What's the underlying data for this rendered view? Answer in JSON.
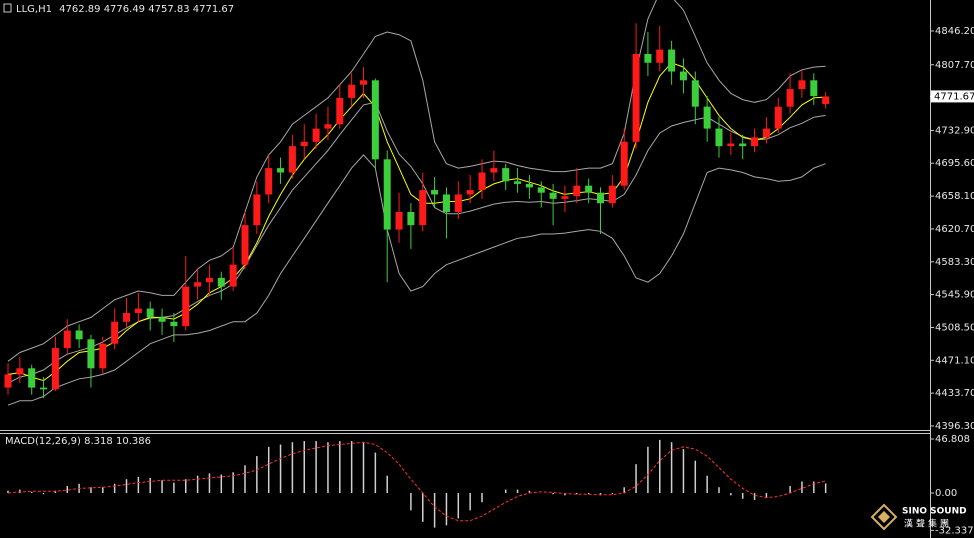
{
  "chart_data": [
    {
      "type": "candlestick",
      "title": "LLG,H1",
      "last_ohlc": [
        4762.89,
        4776.49,
        4757.83,
        4771.67
      ],
      "current_price": 4771.67,
      "ylim": [
        4391.7,
        4879.2
      ],
      "yticks": [
        {
          "value": 4846.2,
          "label": "4846.20"
        },
        {
          "value": 4807.7,
          "label": "4807.70"
        },
        {
          "value": 4732.9,
          "label": "4732.90"
        },
        {
          "value": 4695.6,
          "label": "4695.60"
        },
        {
          "value": 4658.1,
          "label": "4658.10"
        },
        {
          "value": 4620.7,
          "label": "4620.70"
        },
        {
          "value": 4583.3,
          "label": "4583.30"
        },
        {
          "value": 4545.9,
          "label": "4545.90"
        },
        {
          "value": 4508.5,
          "label": "4508.50"
        },
        {
          "value": 4471.1,
          "label": "4471.10"
        },
        {
          "value": 4433.7,
          "label": "4433.70"
        },
        {
          "value": 4396.3,
          "label": "4396.30"
        }
      ],
      "up_color": "#ff1a1a",
      "down_color": "#3ccf3c",
      "candles": [
        [
          4440,
          4468,
          4432,
          4455
        ],
        [
          4455,
          4475,
          4445,
          4462
        ],
        [
          4462,
          4466,
          4432,
          4440
        ],
        [
          4440,
          4452,
          4428,
          4438
        ],
        [
          4438,
          4498,
          4436,
          4485
        ],
        [
          4485,
          4518,
          4478,
          4505
        ],
        [
          4505,
          4512,
          4485,
          4495
        ],
        [
          4495,
          4500,
          4440,
          4462
        ],
        [
          4462,
          4498,
          4455,
          4490
        ],
        [
          4490,
          4530,
          4484,
          4515
        ],
        [
          4515,
          4542,
          4508,
          4525
        ],
        [
          4525,
          4548,
          4515,
          4530
        ],
        [
          4530,
          4538,
          4505,
          4520
        ],
        [
          4520,
          4530,
          4500,
          4515
        ],
        [
          4515,
          4525,
          4492,
          4510
        ],
        [
          4510,
          4590,
          4505,
          4555
        ],
        [
          4555,
          4575,
          4540,
          4560
        ],
        [
          4560,
          4580,
          4545,
          4565
        ],
        [
          4565,
          4572,
          4540,
          4555
        ],
        [
          4555,
          4600,
          4550,
          4580
        ],
        [
          4580,
          4640,
          4575,
          4625
        ],
        [
          4625,
          4675,
          4615,
          4660
        ],
        [
          4660,
          4705,
          4650,
          4690
        ],
        [
          4690,
          4702,
          4672,
          4685
        ],
        [
          4685,
          4728,
          4678,
          4715
        ],
        [
          4715,
          4740,
          4700,
          4720
        ],
        [
          4720,
          4752,
          4712,
          4735
        ],
        [
          4735,
          4760,
          4722,
          4740
        ],
        [
          4740,
          4785,
          4735,
          4770
        ],
        [
          4770,
          4798,
          4760,
          4785
        ],
        [
          4785,
          4805,
          4770,
          4790
        ],
        [
          4790,
          4792,
          4690,
          4700
        ],
        [
          4700,
          4710,
          4560,
          4620
        ],
        [
          4620,
          4662,
          4605,
          4640
        ],
        [
          4640,
          4650,
          4598,
          4625
        ],
        [
          4625,
          4685,
          4618,
          4665
        ],
        [
          4665,
          4680,
          4645,
          4660
        ],
        [
          4660,
          4668,
          4610,
          4640
        ],
        [
          4640,
          4675,
          4632,
          4660
        ],
        [
          4660,
          4682,
          4650,
          4665
        ],
        [
          4665,
          4700,
          4655,
          4685
        ],
        [
          4685,
          4710,
          4675,
          4690
        ],
        [
          4690,
          4695,
          4665,
          4675
        ],
        [
          4675,
          4690,
          4662,
          4672
        ],
        [
          4672,
          4682,
          4655,
          4668
        ],
        [
          4668,
          4675,
          4645,
          4662
        ],
        [
          4662,
          4672,
          4625,
          4655
        ],
        [
          4655,
          4670,
          4640,
          4658
        ],
        [
          4658,
          4690,
          4650,
          4670
        ],
        [
          4670,
          4678,
          4650,
          4662
        ],
        [
          4662,
          4668,
          4615,
          4650
        ],
        [
          4650,
          4682,
          4645,
          4670
        ],
        [
          4670,
          4735,
          4665,
          4720
        ],
        [
          4720,
          4855,
          4712,
          4820
        ],
        [
          4820,
          4845,
          4795,
          4810
        ],
        [
          4810,
          4852,
          4800,
          4825
        ],
        [
          4825,
          4835,
          4785,
          4800
        ],
        [
          4800,
          4815,
          4775,
          4790
        ],
        [
          4790,
          4800,
          4740,
          4760
        ],
        [
          4760,
          4772,
          4720,
          4735
        ],
        [
          4735,
          4748,
          4702,
          4715
        ],
        [
          4715,
          4730,
          4705,
          4718
        ],
        [
          4718,
          4728,
          4700,
          4715
        ],
        [
          4715,
          4735,
          4708,
          4725
        ],
        [
          4725,
          4748,
          4718,
          4735
        ],
        [
          4735,
          4770,
          4730,
          4760
        ],
        [
          4760,
          4798,
          4752,
          4780
        ],
        [
          4780,
          4802,
          4770,
          4790
        ],
        [
          4790,
          4798,
          4762,
          4772
        ],
        [
          4762.89,
          4776.49,
          4757.83,
          4771.67
        ]
      ],
      "overlays": [
        {
          "color": "#a8a8a8",
          "values": [
            4470,
            4480,
            4485,
            4490,
            4500,
            4510,
            4515,
            4520,
            4530,
            4540,
            4545,
            4550,
            4548,
            4545,
            4545,
            4560,
            4575,
            4585,
            4590,
            4600,
            4640,
            4680,
            4705,
            4720,
            4740,
            4750,
            4760,
            4770,
            4785,
            4800,
            4820,
            4840,
            4845,
            4842,
            4835,
            4790,
            4720,
            4695,
            4690,
            4692,
            4695,
            4698,
            4697,
            4693,
            4690,
            4688,
            4686,
            4686,
            4688,
            4690,
            4690,
            4695,
            4730,
            4800,
            4860,
            4890,
            4885,
            4870,
            4840,
            4810,
            4790,
            4775,
            4768,
            4765,
            4768,
            4780,
            4795,
            4802,
            4805,
            4806
          ]
        },
        {
          "color": "#a8a8a8",
          "values": [
            4445,
            4452,
            4455,
            4460,
            4470,
            4478,
            4482,
            4486,
            4492,
            4500,
            4508,
            4515,
            4519,
            4520,
            4522,
            4530,
            4538,
            4545,
            4550,
            4558,
            4578,
            4602,
            4625,
            4645,
            4665,
            4680,
            4695,
            4710,
            4728,
            4745,
            4762,
            4765,
            4732,
            4706,
            4692,
            4672,
            4645,
            4638,
            4638,
            4641,
            4645,
            4649,
            4651,
            4652,
            4651,
            4652,
            4650,
            4651,
            4653,
            4655,
            4654,
            4652,
            4660,
            4682,
            4710,
            4730,
            4738,
            4742,
            4745,
            4748,
            4740,
            4732,
            4726,
            4722,
            4723,
            4728,
            4736,
            4741,
            4748,
            4750
          ]
        },
        {
          "color": "#a8a8a8",
          "values": [
            4420,
            4425,
            4425,
            4430,
            4440,
            4445,
            4450,
            4452,
            4455,
            4460,
            4470,
            4480,
            4490,
            4495,
            4500,
            4500,
            4502,
            4505,
            4510,
            4515,
            4515,
            4525,
            4545,
            4570,
            4590,
            4610,
            4630,
            4650,
            4670,
            4690,
            4705,
            4690,
            4620,
            4570,
            4550,
            4555,
            4570,
            4580,
            4585,
            4590,
            4595,
            4600,
            4605,
            4610,
            4612,
            4615,
            4615,
            4616,
            4618,
            4620,
            4618,
            4610,
            4590,
            4565,
            4560,
            4570,
            4590,
            4615,
            4650,
            4685,
            4690,
            4688,
            4685,
            4680,
            4678,
            4675,
            4676,
            4680,
            4690,
            4695
          ]
        },
        {
          "color": "#ffff00",
          "values": [
            4455,
            4457,
            4452,
            4448,
            4458,
            4470,
            4480,
            4482,
            4485,
            4492,
            4505,
            4515,
            4520,
            4520,
            4518,
            4525,
            4535,
            4548,
            4555,
            4565,
            4580,
            4605,
            4635,
            4660,
            4682,
            4700,
            4715,
            4728,
            4745,
            4760,
            4775,
            4760,
            4720,
            4690,
            4660,
            4650,
            4650,
            4652,
            4652,
            4655,
            4665,
            4672,
            4676,
            4678,
            4674,
            4670,
            4664,
            4660,
            4662,
            4663,
            4660,
            4662,
            4680,
            4720,
            4765,
            4795,
            4810,
            4805,
            4790,
            4770,
            4750,
            4735,
            4725,
            4722,
            4725,
            4735,
            4748,
            4762,
            4770,
            4771
          ]
        }
      ]
    },
    {
      "type": "macd",
      "title": "MACD(12,26,9)",
      "last_values": [
        8.318,
        10.386
      ],
      "ylim": [
        -38.1,
        52.0
      ],
      "yticks": [
        46.808,
        {
          "value": 0,
          "label": "0.00"
        },
        -32.337
      ],
      "histogram": {
        "color": "#d0d0d0",
        "values": [
          2,
          3,
          1,
          -1,
          2,
          6,
          8,
          5,
          5,
          8,
          12,
          14,
          13,
          11,
          9,
          12,
          15,
          17,
          16,
          18,
          24,
          32,
          40,
          42,
          44,
          45,
          45,
          44,
          45,
          45,
          44,
          35,
          15,
          0,
          -15,
          -25,
          -30,
          -28,
          -22,
          -15,
          -8,
          0,
          3,
          3,
          2,
          0,
          -1,
          -2,
          -1,
          -1,
          -2,
          -1,
          5,
          25,
          40,
          46,
          44,
          38,
          28,
          15,
          5,
          -2,
          -5,
          -6,
          -4,
          0,
          6,
          10,
          10,
          8.318
        ]
      },
      "signal": {
        "color": "#ff3030",
        "values": [
          0,
          1,
          1.5,
          1.5,
          1.5,
          2.5,
          4,
          4.5,
          5,
          6,
          7.5,
          9,
          10,
          11,
          11,
          11,
          12,
          13,
          14,
          15,
          17,
          20,
          25,
          30,
          34,
          37,
          39,
          41,
          42,
          43,
          44,
          42,
          35,
          25,
          12,
          0,
          -12,
          -20,
          -24,
          -24,
          -20,
          -14,
          -8,
          -3,
          0,
          1,
          0.5,
          -0.5,
          -1,
          -1,
          -1.5,
          -1.5,
          0,
          6,
          16,
          28,
          37,
          40,
          38,
          32,
          22,
          12,
          4,
          -2,
          -4,
          -3,
          0,
          4,
          8,
          10.386
        ]
      }
    }
  ],
  "logo": {
    "name": "SINO SOUND",
    "subtitle": "漢聲集團"
  }
}
